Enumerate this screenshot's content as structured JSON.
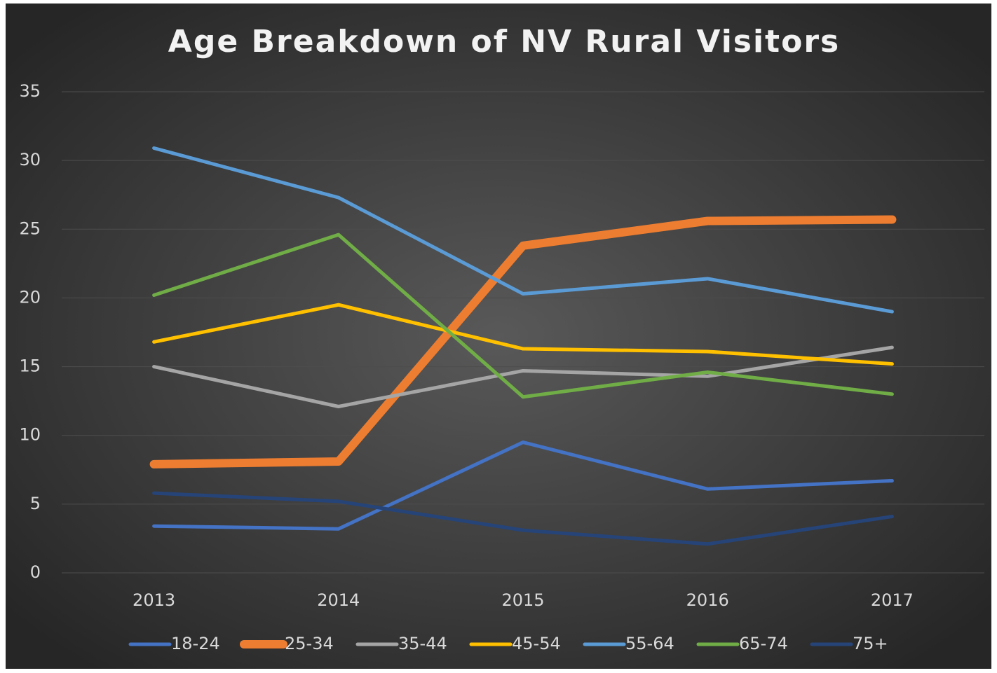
{
  "chart_data": {
    "type": "line",
    "title": "Age Breakdown of NV Rural Visitors",
    "categories": [
      "2013",
      "2014",
      "2015",
      "2016",
      "2017"
    ],
    "series": [
      {
        "name": "18-24",
        "color": "#4472c4",
        "width": 5,
        "values": [
          3.4,
          3.2,
          9.5,
          6.1,
          6.7
        ]
      },
      {
        "name": "25-34",
        "color": "#ed7d31",
        "width": 12,
        "values": [
          7.9,
          8.1,
          23.8,
          25.6,
          25.7
        ]
      },
      {
        "name": "35-44",
        "color": "#a5a5a5",
        "width": 5,
        "values": [
          15.0,
          12.1,
          14.7,
          14.3,
          16.4
        ]
      },
      {
        "name": "45-54",
        "color": "#ffc000",
        "width": 5,
        "values": [
          16.8,
          19.5,
          16.3,
          16.1,
          15.2
        ]
      },
      {
        "name": "55-64",
        "color": "#5b9bd5",
        "width": 5,
        "values": [
          30.9,
          27.3,
          20.3,
          21.4,
          19.0
        ]
      },
      {
        "name": "65-74",
        "color": "#70ad47",
        "width": 5,
        "values": [
          20.2,
          24.6,
          12.8,
          14.6,
          13.0
        ]
      },
      {
        "name": "75+",
        "color": "#264478",
        "width": 5,
        "values": [
          5.8,
          5.2,
          3.1,
          2.1,
          4.1
        ]
      }
    ],
    "ylim": [
      0,
      35
    ],
    "yticks": [
      0,
      5,
      10,
      15,
      20,
      25,
      30,
      35
    ],
    "grid": true,
    "legend": "bottom"
  }
}
